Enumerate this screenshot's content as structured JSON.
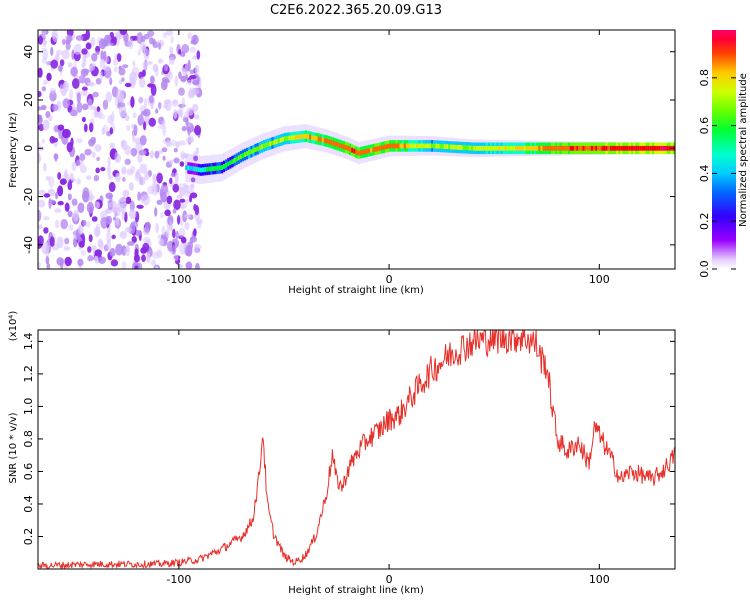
{
  "figure_title": "C2E6.2022.365.20.09.G13",
  "chart_data": [
    {
      "type": "heatmap",
      "xlabel": "Height of straight line (km)",
      "ylabel": "Frequency (Hz)",
      "xlim": [
        -167,
        136
      ],
      "ylim": [
        -50,
        49
      ],
      "xticks": [
        -100,
        0,
        100
      ],
      "yticks": [
        -40,
        -20,
        0,
        20,
        40
      ],
      "colorbar": {
        "label": "Normalized spectral amplitude",
        "range": [
          0.0,
          1.0
        ],
        "ticks": [
          "0.0",
          "0.2",
          "0.4",
          "0.6",
          "0.8"
        ],
        "colormap": [
          "#e6ccff",
          "#9900ff",
          "#3300ff",
          "#0066ff",
          "#00ccff",
          "#00ffcc",
          "#00ff33",
          "#66ff00",
          "#ccff00",
          "#ffcc00",
          "#ff6600",
          "#ff0000",
          "#ff0066"
        ]
      },
      "ridge": {
        "x": [
          -97,
          -90,
          -80,
          -70,
          -60,
          -50,
          -40,
          -30,
          -20,
          -15,
          -10,
          0,
          20,
          40,
          60,
          80,
          100,
          136
        ],
        "freq": [
          -8,
          -9,
          -8,
          -3,
          1,
          4,
          5,
          3,
          0,
          -2,
          -1,
          1,
          1,
          0,
          0,
          0,
          0,
          0
        ],
        "amplitude": [
          0.35,
          0.45,
          0.5,
          0.55,
          0.6,
          0.65,
          0.75,
          0.8,
          0.85,
          0.85,
          0.8,
          0.85,
          0.6,
          0.65,
          0.7,
          0.85,
          0.9,
          0.95
        ]
      },
      "noise_region": {
        "x_from": -167,
        "x_to": -90,
        "amplitude": [
          0.0,
          0.2
        ]
      }
    },
    {
      "type": "line",
      "xlabel": "Height of straight line (km)",
      "ylabel": "SNR (10 * v/v)",
      "scale_label": "(x10⁴)",
      "xlim": [
        -167,
        136
      ],
      "ylim": [
        0.0,
        1.47
      ],
      "xticks": [
        -100,
        0,
        100
      ],
      "yticks": [
        0.2,
        0.4,
        0.6,
        0.8,
        1.0,
        1.2,
        1.4
      ],
      "color": "#e8302a",
      "series": [
        {
          "x": [
            -167,
            -140,
            -110,
            -100,
            -90,
            -80,
            -70,
            -65,
            -62,
            -60,
            -58,
            -55,
            -50,
            -45,
            -40,
            -35,
            -30,
            -27,
            -25,
            -22,
            -20,
            -15,
            -10,
            -5,
            0,
            5,
            10,
            20,
            30,
            40,
            50,
            60,
            65,
            70,
            72,
            75,
            77,
            80,
            85,
            90,
            95,
            98,
            100,
            105,
            110,
            115,
            120,
            125,
            130,
            136
          ],
          "y": [
            0.02,
            0.03,
            0.03,
            0.04,
            0.06,
            0.12,
            0.2,
            0.3,
            0.55,
            0.85,
            0.4,
            0.22,
            0.08,
            0.04,
            0.08,
            0.2,
            0.45,
            0.7,
            0.55,
            0.5,
            0.6,
            0.72,
            0.8,
            0.85,
            0.92,
            0.95,
            1.05,
            1.22,
            1.33,
            1.4,
            1.42,
            1.43,
            1.43,
            1.38,
            1.3,
            1.25,
            1.05,
            0.8,
            0.72,
            0.78,
            0.65,
            0.88,
            0.82,
            0.7,
            0.55,
            0.6,
            0.58,
            0.55,
            0.6,
            0.7
          ]
        }
      ]
    }
  ]
}
